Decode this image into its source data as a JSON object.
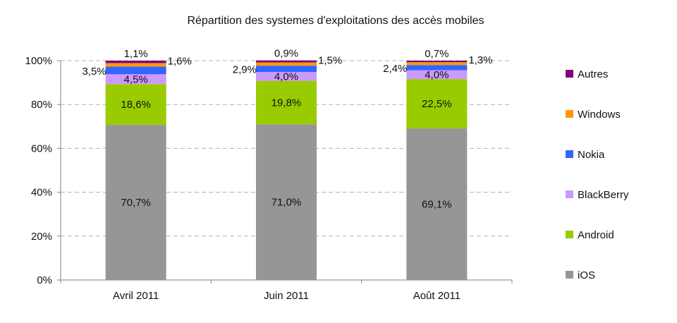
{
  "chart_data": {
    "type": "bar",
    "stacked": true,
    "title": "Répartition des systemes d'exploitations des accès mobiles",
    "categories": [
      "Avril 2011",
      "Juin 2011",
      "Août 2011"
    ],
    "ylim": [
      0,
      100
    ],
    "yticks": [
      "0%",
      "20%",
      "40%",
      "60%",
      "80%",
      "100%"
    ],
    "grid": true,
    "legend_position": "right",
    "series": [
      {
        "name": "iOS",
        "color": "#969696",
        "values": [
          70.7,
          71.0,
          69.1
        ],
        "labels": [
          "70,7%",
          "71,0%",
          "69,1%"
        ]
      },
      {
        "name": "Android",
        "color": "#99cc00",
        "values": [
          18.6,
          19.8,
          22.5
        ],
        "labels": [
          "18,6%",
          "19,8%",
          "22,5%"
        ]
      },
      {
        "name": "BlackBerry",
        "color": "#cc99ff",
        "values": [
          4.5,
          4.0,
          4.0
        ],
        "labels": [
          "4,5%",
          "4,0%",
          "4,0%"
        ]
      },
      {
        "name": "Nokia",
        "color": "#3366ff",
        "values": [
          3.5,
          2.9,
          2.4
        ],
        "labels": [
          "3,5%",
          "2,9%",
          "2,4%"
        ]
      },
      {
        "name": "Windows",
        "color": "#ff9900",
        "values": [
          1.6,
          1.5,
          1.3
        ],
        "labels": [
          "1,6%",
          "1,5%",
          "1,3%"
        ]
      },
      {
        "name": "Autres",
        "color": "#800080",
        "values": [
          1.1,
          0.9,
          0.7
        ],
        "labels": [
          "1,1%",
          "0,9%",
          "0,7%"
        ]
      }
    ],
    "legend_order": [
      "Autres",
      "Windows",
      "Nokia",
      "BlackBerry",
      "Android",
      "iOS"
    ]
  }
}
